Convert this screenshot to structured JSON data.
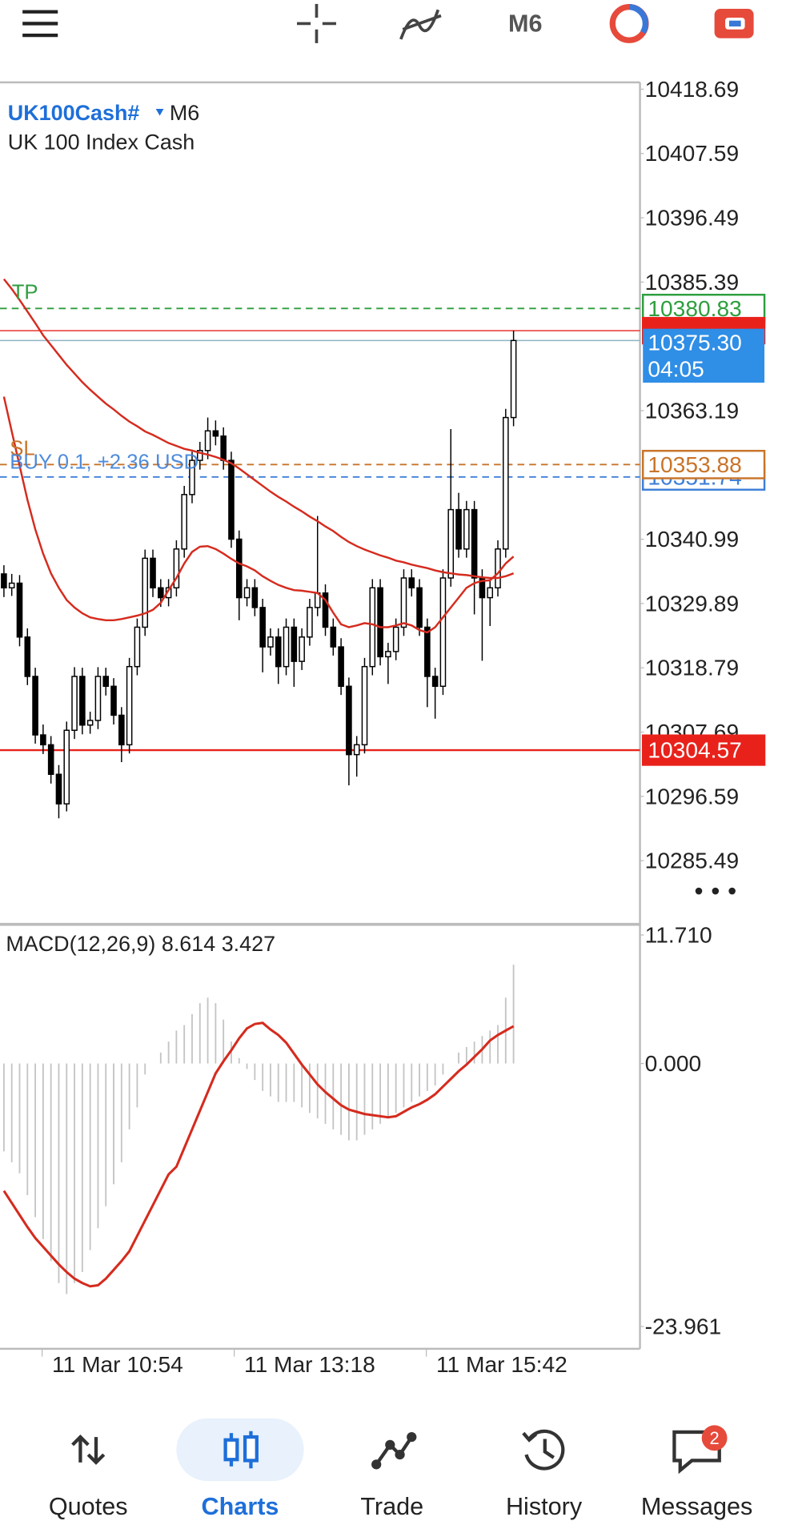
{
  "toolbar": {
    "timeframe": "M6"
  },
  "chart": {
    "type": "candlestick",
    "symbol": "UK100Cash#",
    "timeframe": "M6",
    "description": "UK 100 Index Cash",
    "ylim": [
      10275.0,
      10419.7
    ],
    "yticks": [
      10418.69,
      10407.59,
      10396.49,
      10385.39,
      10363.19,
      10340.99,
      10329.89,
      10318.79,
      10307.69,
      10296.59,
      10285.49
    ],
    "candles": [
      [
        10335.0,
        10336.5,
        10331.0,
        10332.6
      ],
      [
        10332.6,
        10335.0,
        10331.2,
        10333.4
      ],
      [
        10333.4,
        10334.8,
        10322.5,
        10324.1
      ],
      [
        10324.1,
        10325.6,
        10315.8,
        10317.3
      ],
      [
        10317.3,
        10318.8,
        10305.7,
        10307.2
      ],
      [
        10307.2,
        10309.0,
        10303.9,
        10305.5
      ],
      [
        10305.5,
        10307.0,
        10298.8,
        10300.4
      ],
      [
        10300.4,
        10302.0,
        10292.8,
        10295.3
      ],
      [
        10295.3,
        10309.5,
        10294.0,
        10308.0
      ],
      [
        10308.0,
        10318.9,
        10306.5,
        10317.3
      ],
      [
        10317.3,
        10318.8,
        10307.3,
        10308.9
      ],
      [
        10308.9,
        10311.2,
        10307.4,
        10309.7
      ],
      [
        10309.7,
        10318.9,
        10308.2,
        10317.3
      ],
      [
        10317.3,
        10318.8,
        10314.0,
        10315.6
      ],
      [
        10315.6,
        10317.0,
        10309.0,
        10310.6
      ],
      [
        10310.6,
        10312.0,
        10302.5,
        10305.5
      ],
      [
        10305.5,
        10320.5,
        10304.0,
        10319.0
      ],
      [
        10319.0,
        10327.3,
        10317.5,
        10325.8
      ],
      [
        10325.8,
        10339.2,
        10324.3,
        10337.7
      ],
      [
        10337.7,
        10339.2,
        10331.0,
        10332.6
      ],
      [
        10332.6,
        10334.1,
        10329.3,
        10330.9
      ],
      [
        10330.9,
        10334.1,
        10329.4,
        10332.6
      ],
      [
        10332.6,
        10340.8,
        10331.1,
        10339.3
      ],
      [
        10339.3,
        10350.2,
        10337.8,
        10348.7
      ],
      [
        10348.7,
        10356.1,
        10347.2,
        10354.6
      ],
      [
        10354.6,
        10357.8,
        10353.0,
        10356.3
      ],
      [
        10356.3,
        10362.0,
        10354.8,
        10359.7
      ],
      [
        10359.7,
        10361.5,
        10357.2,
        10358.8
      ],
      [
        10358.8,
        10360.3,
        10353.0,
        10354.6
      ],
      [
        10354.6,
        10356.1,
        10339.5,
        10341.0
      ],
      [
        10341.0,
        10342.5,
        10327.0,
        10330.9
      ],
      [
        10330.9,
        10334.1,
        10329.4,
        10332.6
      ],
      [
        10332.6,
        10334.1,
        10327.7,
        10329.2
      ],
      [
        10329.2,
        10330.7,
        10318.0,
        10322.4
      ],
      [
        10322.4,
        10325.6,
        10320.9,
        10324.1
      ],
      [
        10324.1,
        10325.6,
        10316.0,
        10319.0
      ],
      [
        10319.0,
        10327.3,
        10317.5,
        10325.8
      ],
      [
        10325.8,
        10327.3,
        10315.5,
        10319.9
      ],
      [
        10319.9,
        10325.6,
        10318.4,
        10324.1
      ],
      [
        10324.1,
        10330.7,
        10322.6,
        10329.2
      ],
      [
        10329.2,
        10345.0,
        10327.7,
        10331.7
      ],
      [
        10331.7,
        10333.2,
        10324.3,
        10325.8
      ],
      [
        10325.8,
        10327.3,
        10320.9,
        10322.4
      ],
      [
        10322.4,
        10323.9,
        10314.1,
        10315.6
      ],
      [
        10315.6,
        10317.1,
        10298.5,
        10303.8
      ],
      [
        10303.8,
        10307.0,
        10300.0,
        10305.5
      ],
      [
        10305.5,
        10320.5,
        10304.0,
        10319.0
      ],
      [
        10319.0,
        10334.1,
        10317.5,
        10332.6
      ],
      [
        10332.6,
        10334.1,
        10319.2,
        10320.7
      ],
      [
        10320.7,
        10323.1,
        10316.0,
        10321.6
      ],
      [
        10321.6,
        10327.3,
        10320.1,
        10325.8
      ],
      [
        10325.8,
        10335.8,
        10324.3,
        10334.3
      ],
      [
        10334.3,
        10335.8,
        10331.1,
        10332.6
      ],
      [
        10332.6,
        10334.1,
        10324.3,
        10325.8
      ],
      [
        10325.8,
        10327.3,
        10312.0,
        10317.3
      ],
      [
        10317.3,
        10318.8,
        10310.0,
        10315.6
      ],
      [
        10315.6,
        10335.8,
        10314.1,
        10334.3
      ],
      [
        10334.3,
        10360.0,
        10332.8,
        10346.1
      ],
      [
        10346.1,
        10349.0,
        10337.8,
        10339.3
      ],
      [
        10339.3,
        10347.6,
        10337.8,
        10346.1
      ],
      [
        10346.1,
        10347.6,
        10328.0,
        10334.3
      ],
      [
        10334.3,
        10335.8,
        10320.0,
        10330.9
      ],
      [
        10330.9,
        10334.1,
        10326.0,
        10332.6
      ],
      [
        10332.6,
        10340.8,
        10331.1,
        10339.3
      ],
      [
        10339.3,
        10363.5,
        10337.8,
        10362.0
      ],
      [
        10362.0,
        10377.0,
        10360.5,
        10375.3
      ]
    ],
    "moving_averages": [
      {
        "color": "#d52b1e",
        "values": [
          10365.6,
          10359.6,
          10353.7,
          10347.8,
          10342.7,
          10338.5,
          10335.1,
          10332.6,
          10330.5,
          10329.2,
          10328.2,
          10327.5,
          10327.2,
          10327.0,
          10327.0,
          10327.2,
          10327.5,
          10327.8,
          10328.2,
          10328.8,
          10330.0,
          10332.2,
          10334.3,
          10336.8,
          10338.8,
          10339.7,
          10339.8,
          10339.3,
          10338.5,
          10337.6,
          10336.8,
          10336.3,
          10335.6,
          10334.6,
          10333.8,
          10333.1,
          10332.6,
          10332.2,
          10332.1,
          10331.9,
          10331.7,
          10330.5,
          10328.3,
          10326.3,
          10325.8,
          10326.1,
          10326.5,
          10326.3,
          10325.8,
          10325.8,
          10326.1,
          10326.5,
          10326.1,
          10325.3,
          10324.9,
          10325.8,
          10327.5,
          10329.2,
          10330.9,
          10332.6,
          10333.4,
          10333.8,
          10333.9,
          10335.1,
          10336.8,
          10338.0
        ]
      },
      {
        "color": "#d52b1e",
        "values": [
          10385.9,
          10384.2,
          10382.3,
          10380.3,
          10378.3,
          10376.2,
          10374.5,
          10372.8,
          10371.1,
          10369.6,
          10368.1,
          10366.8,
          10365.6,
          10364.4,
          10363.4,
          10362.3,
          10361.3,
          10360.5,
          10359.6,
          10359.0,
          10358.3,
          10357.6,
          10357.1,
          10356.6,
          10356.3,
          10355.9,
          10355.6,
          10355.2,
          10354.7,
          10354.1,
          10353.2,
          10352.2,
          10351.2,
          10350.2,
          10349.2,
          10348.3,
          10347.5,
          10346.6,
          10345.8,
          10344.9,
          10344.1,
          10343.2,
          10342.4,
          10341.4,
          10340.5,
          10339.8,
          10339.2,
          10338.7,
          10338.2,
          10337.8,
          10337.3,
          10337.0,
          10336.6,
          10336.3,
          10336.0,
          10335.6,
          10335.3,
          10335.1,
          10334.9,
          10334.8,
          10334.6,
          10334.4,
          10334.3,
          10334.3,
          10334.6,
          10335.1
        ]
      }
    ],
    "levels": {
      "take_profit": {
        "name": "TP",
        "value": 10380.83,
        "color": "#2e9e3e"
      },
      "ask": {
        "value": 10377.0,
        "color": "#e8221b"
      },
      "bid": {
        "value": 10375.3,
        "label": "10375.30",
        "countdown": "04:05",
        "color": "#2f8ee6"
      },
      "stop_loss": {
        "name": "SL",
        "value": 10353.88,
        "color": "#c8742a"
      },
      "position": {
        "text": "BUY 0.1, +2.36 USD",
        "value": 10351.74,
        "color": "#3d7fd8"
      },
      "horizontal": {
        "value": 10304.57,
        "color": "#e8221b"
      }
    },
    "time_labels": [
      "11 Mar 10:54",
      "11 Mar 13:18",
      "11 Mar 15:42"
    ]
  },
  "macd": {
    "label": "MACD(12,26,9) 8.614 3.427",
    "ylim": [
      -25.9,
      12.5
    ],
    "yticks": [
      {
        "value": 11.71,
        "label": "11.710"
      },
      {
        "value": 0,
        "label": "0.000"
      },
      -23.961
    ],
    "histogram_color": "#c4c4c4",
    "signal_color": "#d52b1e",
    "histogram": [
      -8,
      -9,
      -10,
      -12,
      -14,
      -16,
      -18,
      -20,
      -21,
      -20,
      -19,
      -17,
      -15,
      -13,
      -11,
      -9,
      -6,
      -4,
      -1,
      0,
      1,
      2,
      3,
      3.5,
      4.5,
      5.5,
      6,
      5.5,
      4,
      2,
      0.5,
      -0.5,
      -1.5,
      -2.5,
      -3,
      -3.5,
      -3.5,
      -3.5,
      -4,
      -4.5,
      -5,
      -5.5,
      -6,
      -6.5,
      -7,
      -7,
      -6.5,
      -6,
      -5.5,
      -5,
      -4.5,
      -4,
      -3.5,
      -3,
      -2.5,
      -2,
      -1,
      0,
      1,
      1.5,
      2,
      2.5,
      3,
      3.5,
      6,
      9
    ],
    "signal": [
      -11.6,
      -12.7,
      -13.8,
      -14.9,
      -15.9,
      -16.7,
      -17.5,
      -18.3,
      -19.0,
      -19.6,
      -20.0,
      -20.3,
      -20.2,
      -19.6,
      -18.8,
      -18.0,
      -17.1,
      -15.7,
      -14.3,
      -12.9,
      -11.5,
      -10.1,
      -9.4,
      -7.7,
      -6.0,
      -4.3,
      -2.6,
      -0.9,
      0.2,
      1.2,
      2.3,
      3.2,
      3.6,
      3.7,
      3.1,
      2.6,
      1.9,
      0.9,
      -0.1,
      -1.0,
      -1.9,
      -2.6,
      -3.2,
      -3.8,
      -4.2,
      -4.4,
      -4.6,
      -4.7,
      -4.8,
      -4.9,
      -4.8,
      -4.4,
      -4.0,
      -3.7,
      -3.3,
      -2.8,
      -2.1,
      -1.4,
      -0.7,
      -0.1,
      0.6,
      1.3,
      2.1,
      2.6,
      3.0,
      3.4
    ]
  },
  "navigation": {
    "items": [
      "Quotes",
      "Charts",
      "Trade",
      "History",
      "Messages"
    ],
    "badge": 2
  }
}
